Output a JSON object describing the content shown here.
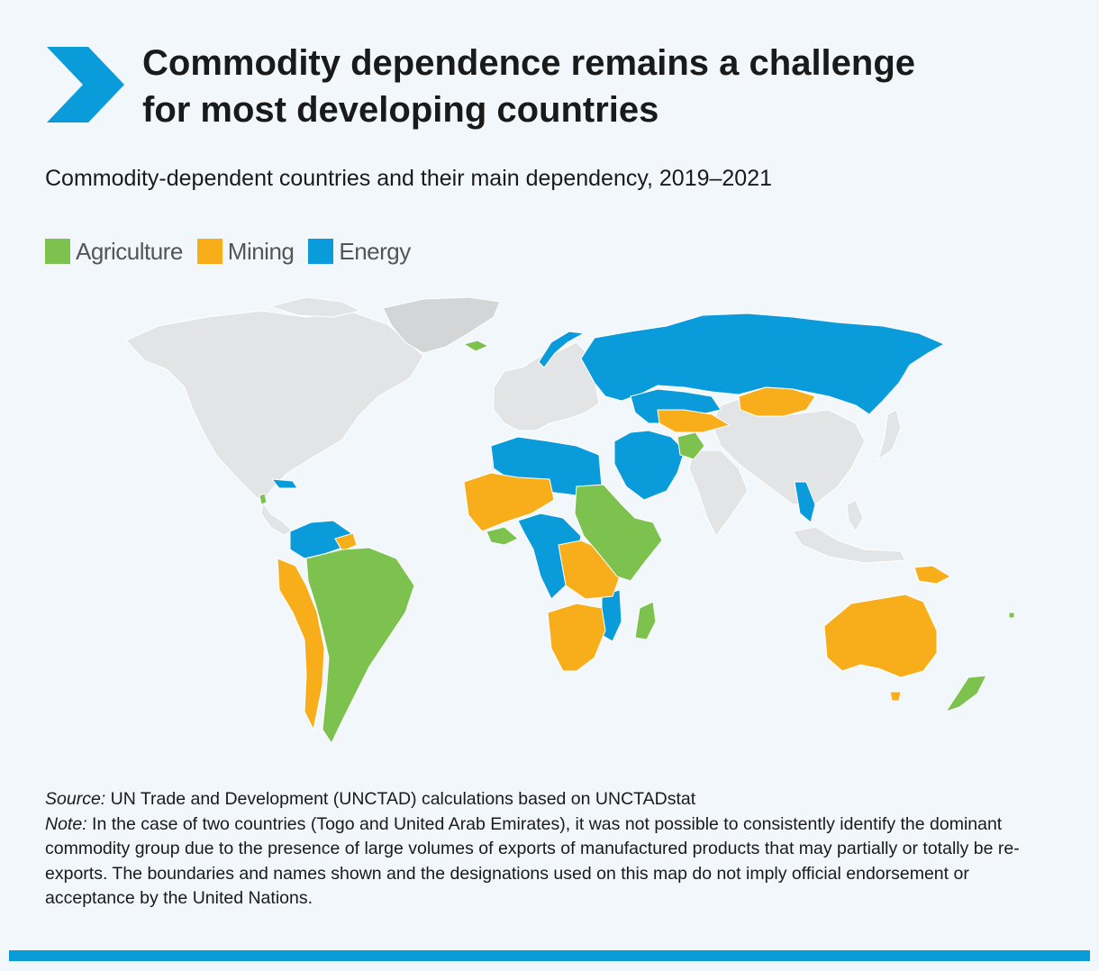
{
  "title": {
    "line1": "Commodity dependence remains a challenge",
    "line2": "for most developing countries"
  },
  "subtitle": "Commodity-dependent countries and their main dependency, 2019–2021",
  "legend": [
    {
      "label": "Agriculture",
      "color": "#7dc24f"
    },
    {
      "label": "Mining",
      "color": "#f7ae1a"
    },
    {
      "label": "Energy",
      "color": "#0a9bdb"
    }
  ],
  "colors": {
    "accent": "#0a9bdb",
    "agriculture": "#7dc24f",
    "mining": "#f7ae1a",
    "energy": "#0a9bdb",
    "non_dependent": "#e3e4e5",
    "greenland": "#d4d5d6",
    "background": "#f2f7fb"
  },
  "map": {
    "regions": [
      {
        "name": "Russia",
        "group": "energy"
      },
      {
        "name": "Kazakhstan",
        "group": "energy"
      },
      {
        "name": "Mongolia",
        "group": "mining"
      },
      {
        "name": "Middle East",
        "group": "energy"
      },
      {
        "name": "Afghanistan",
        "group": "agriculture"
      },
      {
        "name": "Myanmar",
        "group": "energy"
      },
      {
        "name": "North Africa",
        "group": "energy"
      },
      {
        "name": "West Africa",
        "group": "mining"
      },
      {
        "name": "East Africa",
        "group": "agriculture"
      },
      {
        "name": "Central Africa",
        "group": "energy"
      },
      {
        "name": "Southern Africa",
        "group": "mining"
      },
      {
        "name": "Madagascar",
        "group": "agriculture"
      },
      {
        "name": "Brazil and South America",
        "group": "agriculture"
      },
      {
        "name": "Venezuela and Colombia",
        "group": "energy"
      },
      {
        "name": "Peru and Chile",
        "group": "mining"
      },
      {
        "name": "Australia",
        "group": "mining"
      },
      {
        "name": "New Zealand",
        "group": "agriculture"
      },
      {
        "name": "Papua New Guinea",
        "group": "mining"
      },
      {
        "name": "Iceland",
        "group": "agriculture"
      },
      {
        "name": "Norway",
        "group": "energy"
      }
    ]
  },
  "source": {
    "label": "Source:",
    "text": " UN Trade and Development (UNCTAD) calculations based on UNCTADstat"
  },
  "note": {
    "label": "Note:",
    "text": " In the case of two countries (Togo and United Arab Emirates), it was not possible to consistently identify the dominant commodity group due to the presence of large volumes of exports of manufactured products that may partially or totally be re-exports. The boundaries and names shown and the designations used on this map do not imply official endorsement or acceptance by the United Nations."
  }
}
